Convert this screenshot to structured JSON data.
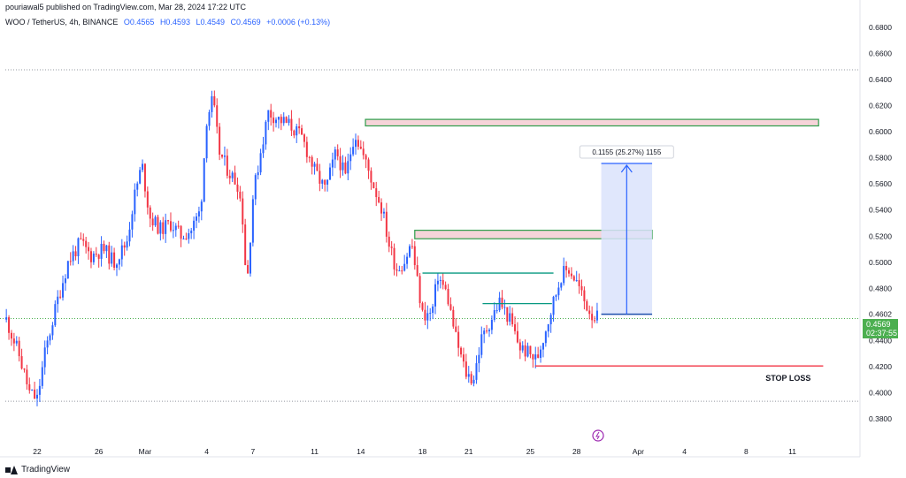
{
  "header": {
    "publisher": "pouriawal5 published on TradingView.com, Mar 28, 2024 17:22 UTC"
  },
  "legend": {
    "symbol": "WOO / TetherUS, 4h, BINANCE",
    "open": "O0.4565",
    "high": "H0.4593",
    "low": "L0.4549",
    "close": "C0.4569",
    "change": "+0.0006 (+0.13%)"
  },
  "price_badge": {
    "price": "0.4569",
    "countdown": "02:37:55"
  },
  "footer": {
    "brand": "TradingView"
  },
  "colors": {
    "up": "#2962ff",
    "down": "#f23645",
    "zone_stroke": "#2e9d4a",
    "zone_fill": "#f6d4d9",
    "target_fill": "#dbe3fb",
    "target_stroke": "#2962ff",
    "stop": "#f23645",
    "level": "#089981",
    "badge": "#4caf50"
  },
  "chart_data": {
    "type": "candlestick",
    "title": "WOO / TetherUS, 4h, BINANCE",
    "ylim": [
      0.37,
      0.69
    ],
    "y_ticks": [
      "0.6800",
      "0.6600",
      "0.6400",
      "0.6200",
      "0.6000",
      "0.5800",
      "0.5600",
      "0.5400",
      "0.5200",
      "0.5000",
      "0.4800",
      "0.4602",
      "0.4400",
      "0.4200",
      "0.4000",
      "0.3800"
    ],
    "x_ticks": [
      {
        "label": "22",
        "day": 22
      },
      {
        "label": "26",
        "day": 26
      },
      {
        "label": "Mar",
        "day": 29
      },
      {
        "label": "4",
        "day": 33
      },
      {
        "label": "7",
        "day": 36
      },
      {
        "label": "11",
        "day": 40
      },
      {
        "label": "14",
        "day": 43
      },
      {
        "label": "18",
        "day": 47
      },
      {
        "label": "21",
        "day": 50
      },
      {
        "label": "25",
        "day": 54
      },
      {
        "label": "28",
        "day": 57
      },
      {
        "label": "Apr",
        "day": 61
      },
      {
        "label": "4",
        "day": 64
      },
      {
        "label": "8",
        "day": 68
      },
      {
        "label": "11",
        "day": 71
      }
    ],
    "price_path": [
      [
        20.0,
        0.456
      ],
      [
        20.8,
        0.43
      ],
      [
        21.5,
        0.4
      ],
      [
        22.0,
        0.395
      ],
      [
        22.5,
        0.43
      ],
      [
        23.3,
        0.47
      ],
      [
        24.0,
        0.5
      ],
      [
        24.8,
        0.515
      ],
      [
        25.5,
        0.505
      ],
      [
        26.3,
        0.51
      ],
      [
        27.0,
        0.5
      ],
      [
        27.8,
        0.515
      ],
      [
        28.3,
        0.55
      ],
      [
        28.8,
        0.575
      ],
      [
        29.3,
        0.535
      ],
      [
        30.0,
        0.525
      ],
      [
        30.7,
        0.53
      ],
      [
        31.3,
        0.52
      ],
      [
        32.0,
        0.525
      ],
      [
        32.6,
        0.54
      ],
      [
        33.0,
        0.61
      ],
      [
        33.4,
        0.625
      ],
      [
        33.8,
        0.585
      ],
      [
        34.4,
        0.57
      ],
      [
        35.0,
        0.56
      ],
      [
        35.3,
        0.54
      ],
      [
        35.6,
        0.48
      ],
      [
        36.0,
        0.55
      ],
      [
        36.5,
        0.585
      ],
      [
        37.0,
        0.615
      ],
      [
        37.6,
        0.61
      ],
      [
        38.4,
        0.605
      ],
      [
        39.2,
        0.595
      ],
      [
        40.0,
        0.57
      ],
      [
        40.7,
        0.555
      ],
      [
        41.4,
        0.585
      ],
      [
        42.0,
        0.565
      ],
      [
        42.6,
        0.6
      ],
      [
        43.2,
        0.58
      ],
      [
        43.8,
        0.56
      ],
      [
        44.4,
        0.54
      ],
      [
        44.8,
        0.515
      ],
      [
        45.3,
        0.495
      ],
      [
        45.8,
        0.5
      ],
      [
        46.3,
        0.515
      ],
      [
        46.6,
        0.49
      ],
      [
        47.0,
        0.46
      ],
      [
        47.6,
        0.46
      ],
      [
        48.0,
        0.49
      ],
      [
        48.6,
        0.475
      ],
      [
        49.2,
        0.44
      ],
      [
        49.8,
        0.415
      ],
      [
        50.3,
        0.41
      ],
      [
        50.8,
        0.44
      ],
      [
        51.4,
        0.455
      ],
      [
        52.0,
        0.47
      ],
      [
        52.7,
        0.455
      ],
      [
        53.3,
        0.435
      ],
      [
        53.9,
        0.43
      ],
      [
        54.4,
        0.425
      ],
      [
        54.9,
        0.445
      ],
      [
        55.5,
        0.47
      ],
      [
        56.0,
        0.49
      ],
      [
        56.5,
        0.495
      ],
      [
        57.0,
        0.485
      ],
      [
        57.5,
        0.47
      ],
      [
        58.0,
        0.46
      ],
      [
        58.4,
        0.4569
      ]
    ],
    "annotations": {
      "zones": [
        {
          "name": "upper-resistance-zone",
          "x1": 43.3,
          "x2": 72.7,
          "y_low": 0.6045,
          "y_high": 0.6095
        },
        {
          "name": "mid-resistance-zone",
          "x1": 46.5,
          "x2": 61.9,
          "y_low": 0.518,
          "y_high": 0.5245
        }
      ],
      "target_box": {
        "x1": 58.6,
        "x2": 61.9,
        "y_low": 0.4602,
        "y_high": 0.5757,
        "label": "0.1155 (25.27%) 1155"
      },
      "stop_loss": {
        "x1": 54.3,
        "x2": 73.0,
        "y": 0.4205,
        "label": "STOP LOSS"
      },
      "levels": [
        {
          "x1": 47.0,
          "x2": 55.5,
          "y": 0.4917
        },
        {
          "x1": 50.9,
          "x2": 55.4,
          "y": 0.4683
        }
      ],
      "current_price_line": 0.4569,
      "dotted_top": 0.6475,
      "dotted_bottom": 0.3935
    }
  }
}
